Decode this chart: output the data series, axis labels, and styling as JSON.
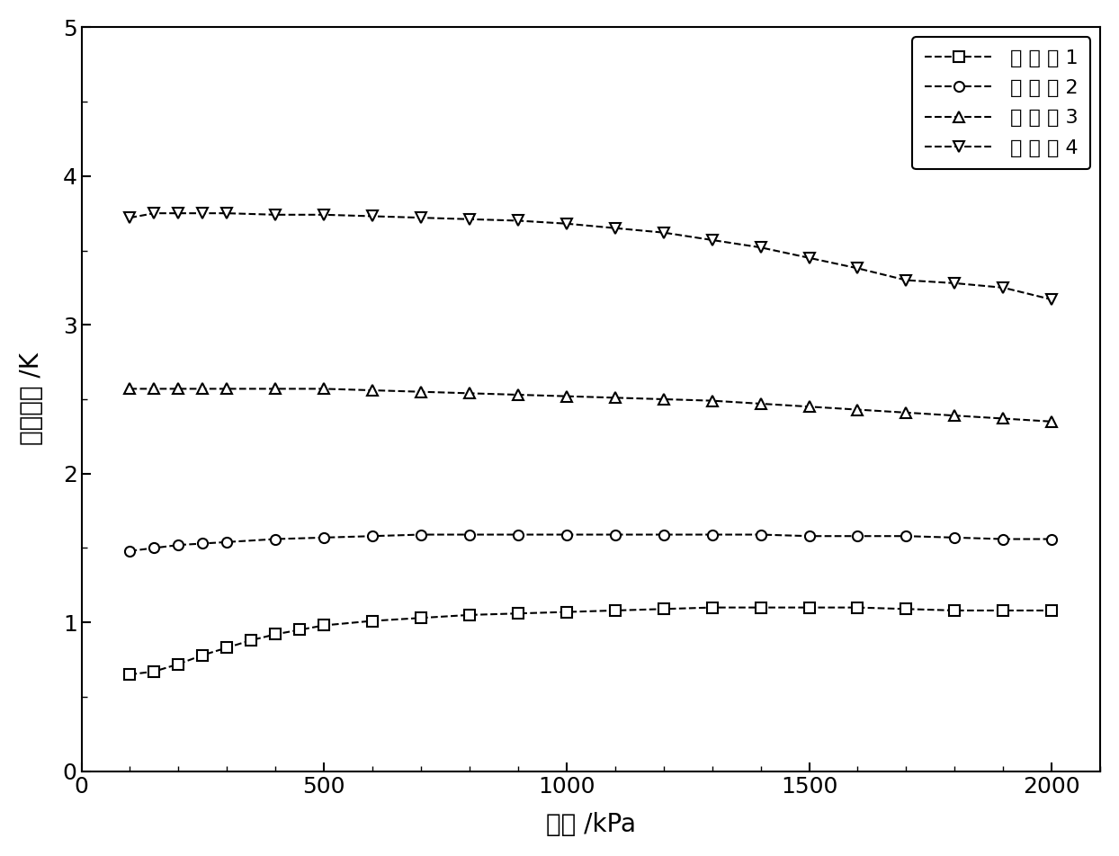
{
  "xlabel": "压力 /kPa",
  "ylabel": "温度滑移 /K",
  "xlim": [
    0,
    2100
  ],
  "ylim": [
    0,
    5
  ],
  "xticks": [
    0,
    500,
    1000,
    1500,
    2000
  ],
  "yticks": [
    0,
    1,
    2,
    3,
    4,
    5
  ],
  "legend_labels": [
    "实 施 例 1",
    "实 施 例 2",
    "实 施 例 3",
    "实 施 例 4"
  ],
  "series": [
    {
      "label": "实 施 例 1",
      "marker": "s",
      "x": [
        100,
        150,
        200,
        250,
        300,
        350,
        400,
        450,
        500,
        600,
        700,
        800,
        900,
        1000,
        1100,
        1200,
        1300,
        1400,
        1500,
        1600,
        1700,
        1800,
        1900,
        2000
      ],
      "y": [
        0.65,
        0.67,
        0.72,
        0.78,
        0.83,
        0.88,
        0.92,
        0.95,
        0.98,
        1.01,
        1.03,
        1.05,
        1.06,
        1.07,
        1.08,
        1.09,
        1.1,
        1.1,
        1.1,
        1.1,
        1.09,
        1.08,
        1.08,
        1.08
      ]
    },
    {
      "label": "实 施 例 2",
      "marker": "o",
      "x": [
        100,
        150,
        200,
        250,
        300,
        400,
        500,
        600,
        700,
        800,
        900,
        1000,
        1100,
        1200,
        1300,
        1400,
        1500,
        1600,
        1700,
        1800,
        1900,
        2000
      ],
      "y": [
        1.48,
        1.5,
        1.52,
        1.53,
        1.54,
        1.56,
        1.57,
        1.58,
        1.59,
        1.59,
        1.59,
        1.59,
        1.59,
        1.59,
        1.59,
        1.59,
        1.58,
        1.58,
        1.58,
        1.57,
        1.56,
        1.56
      ]
    },
    {
      "label": "实 施 例 3",
      "marker": "^",
      "x": [
        100,
        150,
        200,
        250,
        300,
        400,
        500,
        600,
        700,
        800,
        900,
        1000,
        1100,
        1200,
        1300,
        1400,
        1500,
        1600,
        1700,
        1800,
        1900,
        2000
      ],
      "y": [
        2.57,
        2.57,
        2.57,
        2.57,
        2.57,
        2.57,
        2.57,
        2.56,
        2.55,
        2.54,
        2.53,
        2.52,
        2.51,
        2.5,
        2.49,
        2.47,
        2.45,
        2.43,
        2.41,
        2.39,
        2.37,
        2.35
      ]
    },
    {
      "label": "实 施 例 4",
      "marker": "v",
      "x": [
        100,
        150,
        200,
        250,
        300,
        400,
        500,
        600,
        700,
        800,
        900,
        1000,
        1100,
        1200,
        1300,
        1400,
        1500,
        1600,
        1700,
        1800,
        1900,
        2000
      ],
      "y": [
        3.72,
        3.75,
        3.75,
        3.75,
        3.75,
        3.74,
        3.74,
        3.73,
        3.72,
        3.71,
        3.7,
        3.68,
        3.65,
        3.62,
        3.57,
        3.52,
        3.45,
        3.38,
        3.3,
        3.28,
        3.25,
        3.17
      ]
    }
  ],
  "line_color": "#000000",
  "line_style": "--",
  "line_width": 1.5,
  "marker_size": 8,
  "marker_facecolor": "white",
  "marker_edgecolor": "#000000",
  "background_color": "#ffffff",
  "font_size_label": 20,
  "font_size_tick": 18,
  "font_size_legend": 16
}
